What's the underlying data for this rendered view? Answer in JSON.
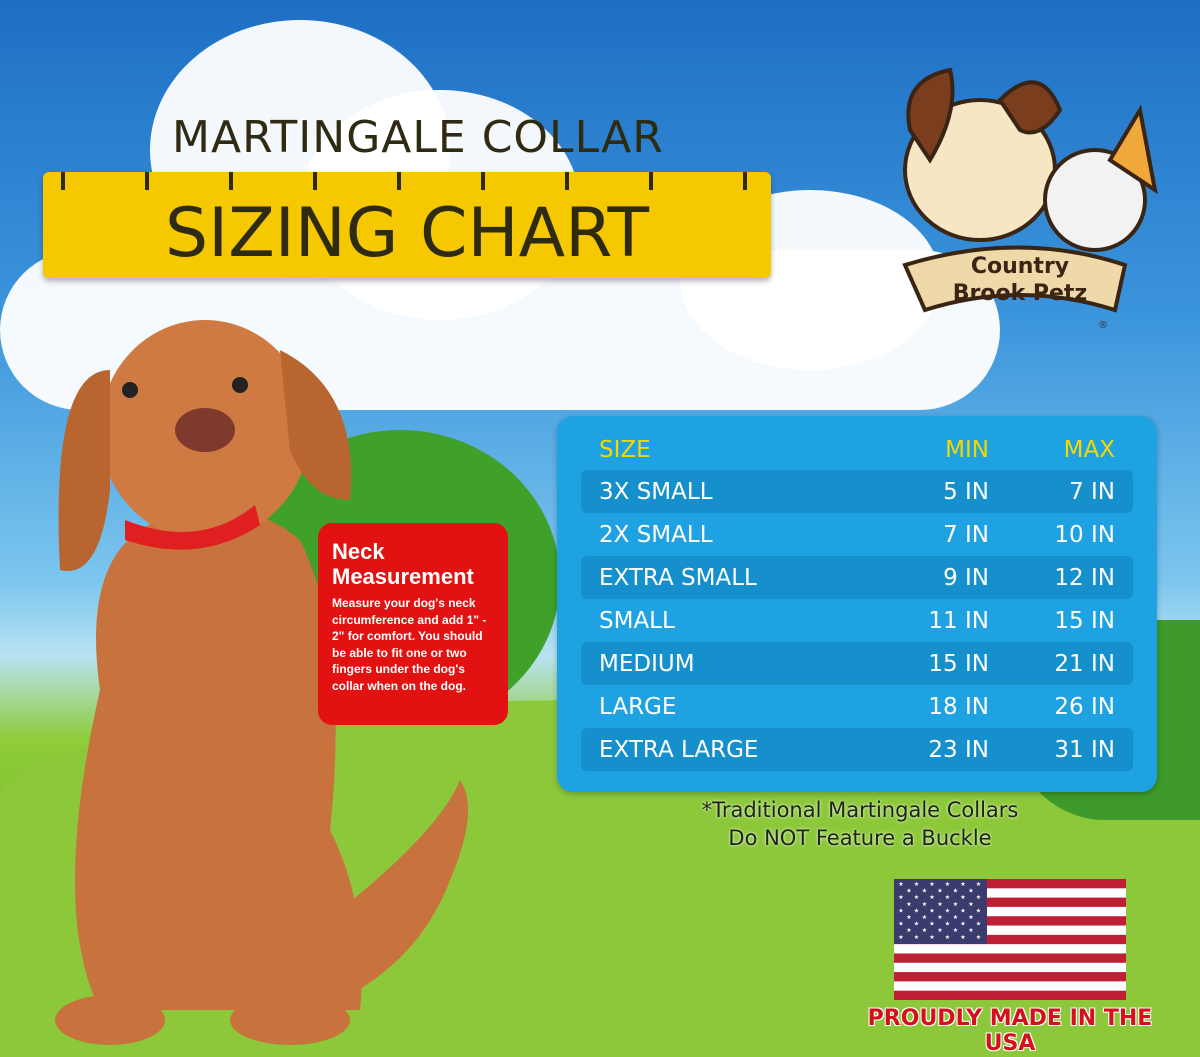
{
  "title": {
    "line1": "MARTINGALE COLLAR",
    "line2": "SIZING CHART"
  },
  "logo": {
    "text": "Country Brook Petz",
    "mark": "®"
  },
  "neck_box": {
    "heading": "Neck Measurement",
    "body": "Measure your dog's neck circumference and add 1\" - 2\" for comfort. You should be able to fit one or two fingers under the dog's collar when on the dog."
  },
  "table": {
    "headers": [
      "SIZE",
      "MIN",
      "MAX"
    ],
    "rows": [
      [
        "3X SMALL",
        "5 IN",
        "7 IN"
      ],
      [
        "2X SMALL",
        "7 IN",
        "10 IN"
      ],
      [
        "EXTRA SMALL",
        "9 IN",
        "12 IN"
      ],
      [
        "SMALL",
        "11 IN",
        "15 IN"
      ],
      [
        "MEDIUM",
        "15 IN",
        "21 IN"
      ],
      [
        "LARGE",
        "18 IN",
        "26 IN"
      ],
      [
        "EXTRA LARGE",
        "23 IN",
        "31 IN"
      ]
    ]
  },
  "note": {
    "line1": "*Traditional Martingale Collars",
    "line2": "Do NOT Feature a Buckle"
  },
  "made_in": "PROUDLY MADE IN THE USA",
  "colors": {
    "table_bg": "#1ea2e2",
    "header_text": "#f5d800",
    "ruler": "#f5c800",
    "neck_box": "#e21212",
    "usa_text": "#d4101c"
  }
}
